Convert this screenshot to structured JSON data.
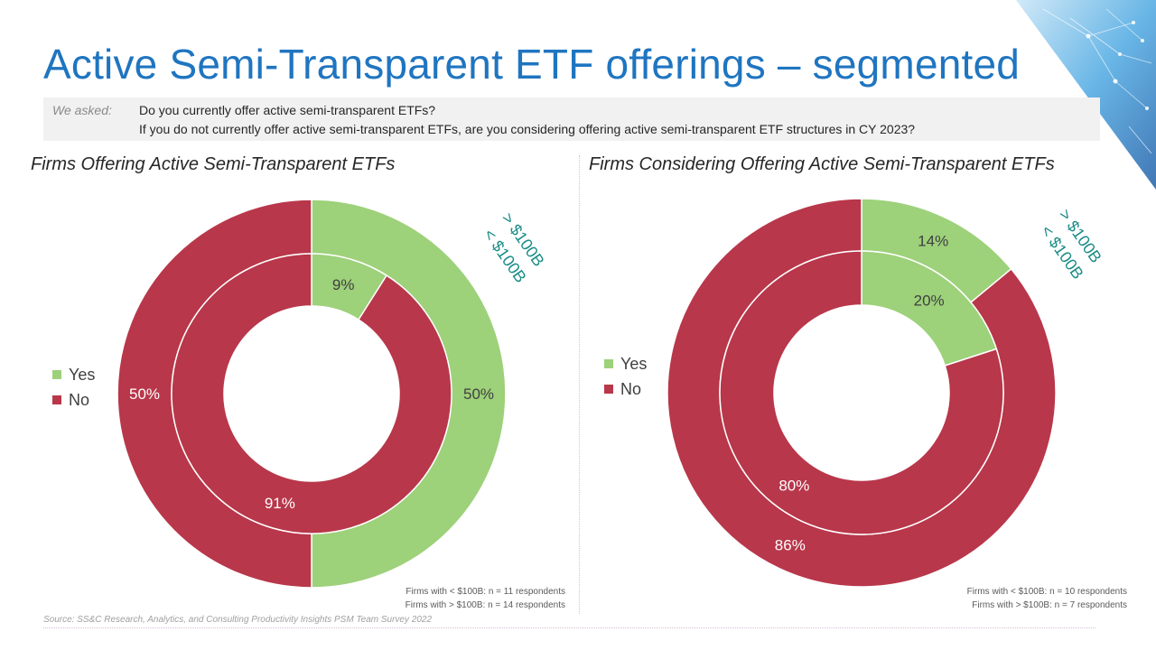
{
  "title": "Active Semi-Transparent ETF offerings – segmented",
  "question": {
    "label": "We asked:",
    "line1": "Do you currently offer active semi-transparent ETFs?",
    "line2": "If you do not currently offer active semi-transparent ETFs, are you considering offering active semi-transparent ETF structures in CY 2023?"
  },
  "colors": {
    "yes": "#9dd17a",
    "no": "#b8374a",
    "title": "#1f75c0",
    "ring_key": "#1a8c87"
  },
  "legend": {
    "yes": "Yes",
    "no": "No"
  },
  "ring_key": {
    "outer": "> $100B",
    "inner": "< $100B"
  },
  "charts": [
    {
      "subtitle": "Firms Offering Active Semi-Transparent  ETFs",
      "note_line1": "Firms with < $100B: n = 11 respondents",
      "note_line2": "Firms with > $100B: n = 14 respondents"
    },
    {
      "subtitle": "Firms Considering Offering Active Semi-Transparent ETFs",
      "note_line1": "Firms with < $100B: n = 10 respondents",
      "note_line2": "Firms with > $100B: n = 7 respondents"
    }
  ],
  "chart_data": [
    {
      "type": "pie",
      "title": "Firms Offering Active Semi-Transparent  ETFs",
      "categories": [
        "Yes",
        "No"
      ],
      "series": [
        {
          "name": "> $100B",
          "values": [
            50,
            50
          ],
          "labels": [
            "50%",
            "50%"
          ]
        },
        {
          "name": "< $100B",
          "values": [
            9,
            91
          ],
          "labels": [
            "9%",
            "91%"
          ]
        }
      ]
    },
    {
      "type": "pie",
      "title": "Firms Considering Offering Active Semi-Transparent ETFs",
      "categories": [
        "Yes",
        "No"
      ],
      "series": [
        {
          "name": "> $100B",
          "values": [
            14,
            86
          ],
          "labels": [
            "14%",
            "86%"
          ]
        },
        {
          "name": "< $100B",
          "values": [
            20,
            80
          ],
          "labels": [
            "20%",
            "80%"
          ]
        }
      ]
    }
  ],
  "source": "Source: SS&C Research, Analytics, and Consulting Productivity Insights PSM Team Survey 2022"
}
